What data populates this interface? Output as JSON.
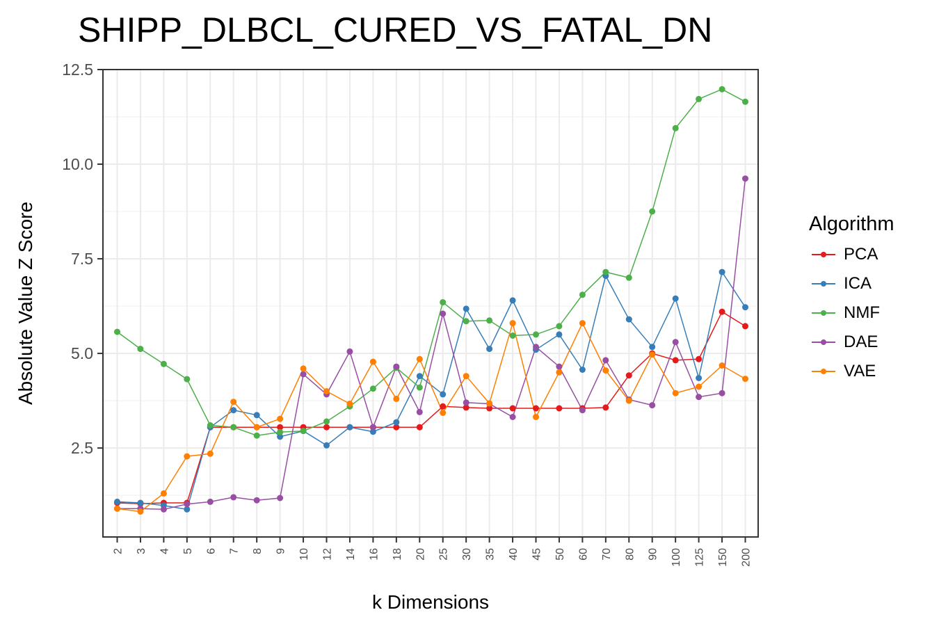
{
  "chart_data": {
    "type": "line",
    "title": "SHIPP_DLBCL_CURED_VS_FATAL_DN",
    "xlabel": "k Dimensions",
    "ylabel": "Absolute Value Z Score",
    "categories": [
      "2",
      "3",
      "4",
      "5",
      "6",
      "7",
      "8",
      "9",
      "10",
      "12",
      "14",
      "16",
      "18",
      "20",
      "25",
      "30",
      "35",
      "40",
      "45",
      "50",
      "60",
      "70",
      "80",
      "90",
      "100",
      "125",
      "150",
      "200"
    ],
    "ylim": [
      0.15,
      12.5
    ],
    "yticks": [
      "2.5",
      "5.0",
      "7.5",
      "10.0",
      "12.5"
    ],
    "grid": true,
    "legend": {
      "title": "Algorithm",
      "position": "right"
    },
    "series": [
      {
        "name": "PCA",
        "color": "#E41A1C",
        "values": [
          1.05,
          1.03,
          1.05,
          1.05,
          3.05,
          3.05,
          3.05,
          3.05,
          3.05,
          3.05,
          3.05,
          3.05,
          3.05,
          3.05,
          3.6,
          3.57,
          3.55,
          3.55,
          3.55,
          3.55,
          3.55,
          3.57,
          4.42,
          5.0,
          4.82,
          4.85,
          6.1,
          5.72
        ]
      },
      {
        "name": "ICA",
        "color": "#377EB8",
        "values": [
          1.08,
          1.05,
          0.98,
          0.88,
          3.05,
          3.5,
          3.37,
          2.8,
          2.95,
          2.57,
          3.05,
          2.93,
          3.18,
          4.4,
          3.92,
          6.18,
          5.12,
          6.4,
          5.1,
          5.5,
          4.57,
          7.05,
          5.9,
          5.17,
          6.45,
          4.35,
          7.15,
          6.22
        ]
      },
      {
        "name": "NMF",
        "color": "#4DAF4A",
        "values": [
          5.57,
          5.12,
          4.72,
          4.32,
          3.1,
          3.05,
          2.83,
          2.92,
          2.95,
          3.2,
          3.6,
          4.07,
          4.62,
          4.1,
          6.35,
          5.85,
          5.87,
          5.47,
          5.5,
          5.72,
          6.55,
          7.15,
          7.0,
          8.75,
          10.95,
          11.72,
          11.98,
          11.65
        ]
      },
      {
        "name": "DAE",
        "color": "#984EA3",
        "values": [
          0.9,
          0.9,
          0.88,
          1.02,
          1.08,
          1.2,
          1.12,
          1.18,
          4.45,
          3.92,
          5.05,
          3.05,
          4.65,
          3.45,
          6.05,
          3.7,
          3.67,
          3.32,
          5.17,
          4.65,
          3.5,
          4.82,
          3.78,
          3.63,
          5.3,
          3.85,
          3.95,
          9.62
        ]
      },
      {
        "name": "VAE",
        "color": "#FF7F00",
        "values": [
          0.9,
          0.82,
          1.3,
          2.28,
          2.35,
          3.72,
          3.05,
          3.27,
          4.6,
          4.0,
          3.67,
          4.78,
          3.8,
          4.85,
          3.43,
          4.4,
          3.68,
          5.8,
          3.32,
          4.5,
          5.8,
          4.55,
          3.75,
          4.97,
          3.95,
          4.12,
          4.68,
          4.33
        ]
      }
    ]
  }
}
